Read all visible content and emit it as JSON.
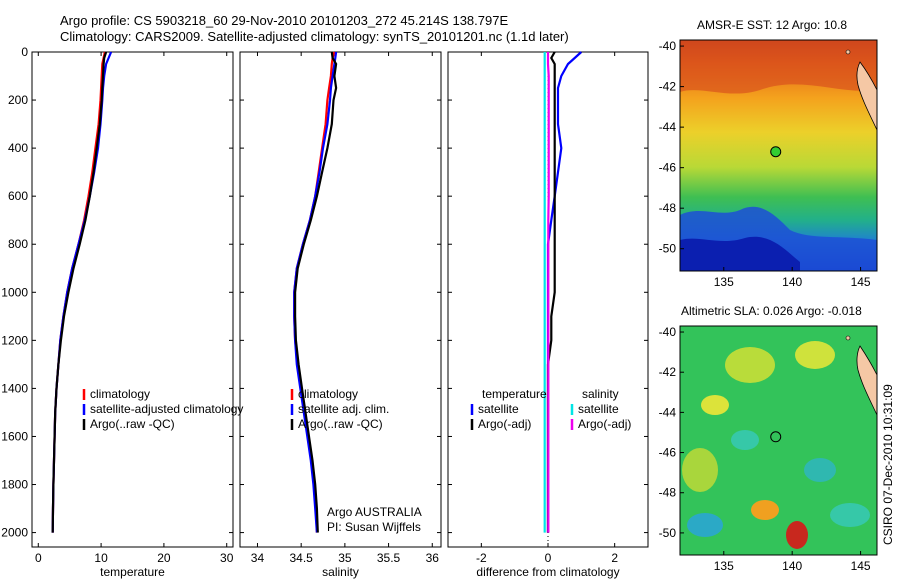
{
  "header": {
    "line1": "Argo profile: CS 5903218_60 29-Nov-2010 20101203_272 45.214S 138.797E",
    "line2": "Climatology: CARS2009. Satellite-adjusted climatology: synTS_20101201.nc (1.1d later)"
  },
  "stamp": "CSIRO 07-Dec-2010 10:31:09",
  "colors": {
    "climatology": "#ff0000",
    "satellite": "#0000ff",
    "argo": "#000000",
    "sal_satellite": "#00e5e5",
    "sal_argo": "#ee00ee",
    "marker": "#32cd32"
  },
  "chart_data": [
    {
      "id": "temperature",
      "type": "line",
      "xlabel": "temperature",
      "xlim": [
        -1,
        31
      ],
      "xticks": [
        0,
        10,
        20,
        30
      ],
      "ylim": [
        0,
        2060
      ],
      "yticks": [
        0,
        200,
        400,
        600,
        800,
        1000,
        1200,
        1400,
        1600,
        1800,
        2000
      ],
      "depth": [
        0,
        25,
        50,
        100,
        150,
        200,
        300,
        400,
        500,
        600,
        700,
        800,
        900,
        1000,
        1100,
        1200,
        1300,
        1400,
        1500,
        1600,
        1700,
        1800,
        1900,
        2000
      ],
      "series": [
        {
          "name": "climatology",
          "color_key": "climatology",
          "values": [
            10.6,
            10.4,
            10.2,
            10.1,
            10.0,
            9.9,
            9.6,
            9.1,
            8.6,
            8.0,
            7.3,
            6.4,
            5.4,
            4.6,
            4.0,
            3.5,
            3.2,
            2.9,
            2.7,
            2.6,
            2.5,
            2.4,
            2.35,
            2.3
          ]
        },
        {
          "name": "satellite-adjusted climatology",
          "color_key": "satellite",
          "values": [
            11.6,
            11.2,
            10.8,
            10.5,
            10.3,
            10.2,
            9.9,
            9.5,
            8.9,
            8.2,
            7.4,
            6.4,
            5.4,
            4.6,
            4.0,
            3.5,
            3.2,
            2.9,
            2.7,
            2.6,
            2.5,
            2.4,
            2.35,
            2.3
          ]
        },
        {
          "name": "Argo(..raw -QC)",
          "color_key": "argo",
          "values": [
            10.8,
            10.5,
            10.4,
            10.3,
            10.2,
            10.1,
            9.8,
            9.3,
            8.8,
            8.2,
            7.5,
            6.6,
            5.6,
            4.8,
            4.1,
            3.6,
            3.2,
            2.9,
            2.7,
            2.6,
            2.5,
            2.4,
            2.35,
            2.3
          ]
        }
      ],
      "legend": {
        "items": [
          "climatology",
          "satellite-adjusted climatology",
          "Argo(..raw -QC)"
        ]
      }
    },
    {
      "id": "salinity",
      "type": "line",
      "xlabel": "salinity",
      "xlim": [
        33.8,
        36.1
      ],
      "xticks": [
        34,
        34.5,
        35,
        35.5,
        36
      ],
      "ylim": [
        0,
        2060
      ],
      "yticks": [
        0,
        200,
        400,
        600,
        800,
        1000,
        1200,
        1400,
        1600,
        1800,
        2000
      ],
      "depth": [
        0,
        25,
        50,
        100,
        150,
        200,
        300,
        400,
        500,
        600,
        700,
        800,
        900,
        1000,
        1100,
        1200,
        1300,
        1400,
        1500,
        1600,
        1700,
        1800,
        1900,
        2000
      ],
      "series": [
        {
          "name": "climatology",
          "color_key": "climatology",
          "values": [
            34.88,
            34.86,
            34.85,
            34.84,
            34.82,
            34.8,
            34.78,
            34.74,
            34.7,
            34.66,
            34.6,
            34.52,
            34.45,
            34.42,
            34.42,
            34.43,
            34.46,
            34.5,
            34.54,
            34.58,
            34.62,
            34.65,
            34.67,
            34.68
          ]
        },
        {
          "name": "satellite adj. clim.",
          "color_key": "satellite",
          "values": [
            34.9,
            34.89,
            34.88,
            34.86,
            34.84,
            34.83,
            34.8,
            34.75,
            34.71,
            34.66,
            34.6,
            34.52,
            34.45,
            34.42,
            34.42,
            34.43,
            34.45,
            34.49,
            34.53,
            34.57,
            34.61,
            34.64,
            34.66,
            34.68
          ]
        },
        {
          "name": "Argo(..raw -QC)",
          "color_key": "argo",
          "values": [
            34.85,
            34.86,
            34.9,
            34.88,
            34.9,
            34.87,
            34.85,
            34.8,
            34.74,
            34.68,
            34.61,
            34.53,
            34.46,
            34.43,
            34.43,
            34.44,
            34.47,
            34.51,
            34.55,
            34.59,
            34.63,
            34.66,
            34.68,
            34.69
          ]
        }
      ],
      "legend": {
        "items": [
          "climatology",
          "satellite adj. clim.",
          "Argo(..raw -QC)"
        ]
      },
      "annotation": [
        "Argo AUSTRALIA",
        "PI: Susan Wijffels"
      ]
    },
    {
      "id": "difference",
      "type": "line",
      "xlabel": "difference from climatology",
      "xlim": [
        -3,
        3
      ],
      "xticks": [
        -2,
        0,
        2
      ],
      "ylim": [
        0,
        2060
      ],
      "yticks": [
        0,
        200,
        400,
        600,
        800,
        1000,
        1200,
        1400,
        1600,
        1800,
        2000
      ],
      "depth": [
        0,
        25,
        50,
        100,
        150,
        200,
        300,
        400,
        500,
        600,
        700,
        800,
        900,
        1000,
        1100,
        1200,
        1300,
        1400,
        1500,
        1600,
        1700,
        1800,
        1900,
        2000
      ],
      "series": [
        {
          "name": "temperature satellite",
          "color_key": "satellite",
          "values": [
            1.0,
            0.8,
            0.6,
            0.4,
            0.3,
            0.3,
            0.3,
            0.4,
            0.3,
            0.2,
            0.1,
            0.0,
            0.0,
            0.0,
            0.0,
            0.0,
            0.0,
            0.0,
            0.0,
            0.0,
            0.0,
            0.0,
            0.0,
            0.0
          ]
        },
        {
          "name": "temperature Argo(-adj)",
          "color_key": "argo",
          "values": [
            0.2,
            0.1,
            0.2,
            0.2,
            0.2,
            0.2,
            0.2,
            0.2,
            0.2,
            0.2,
            0.2,
            0.2,
            0.2,
            0.2,
            0.1,
            0.1,
            0.0,
            0.0,
            0.0,
            0.0,
            0.0,
            0.0,
            0.0,
            0.0
          ]
        },
        {
          "name": "salinity satellite",
          "color_key": "sal_satellite",
          "values": [
            -0.1,
            -0.1,
            -0.1,
            -0.1,
            -0.1,
            -0.1,
            -0.1,
            -0.1,
            -0.1,
            -0.1,
            -0.1,
            -0.1,
            -0.1,
            -0.1,
            -0.1,
            -0.1,
            -0.1,
            -0.1,
            -0.1,
            -0.1,
            -0.1,
            -0.1,
            -0.1,
            -0.1
          ]
        },
        {
          "name": "salinity Argo(-adj)",
          "color_key": "sal_argo",
          "values": [
            0.0,
            0.0,
            0.0,
            0.02,
            0.02,
            0.02,
            0.02,
            0.02,
            0.02,
            0.02,
            0.01,
            0.01,
            0.01,
            0.01,
            0.01,
            0.01,
            0.01,
            0.01,
            0.01,
            0.01,
            0.01,
            0.01,
            0.01,
            0.01
          ]
        }
      ],
      "legend": {
        "groups": [
          {
            "heading": "temperature",
            "items": [
              "satellite",
              "Argo(-adj)"
            ]
          },
          {
            "heading": "salinity",
            "items": [
              "satellite",
              "Argo(-adj)"
            ]
          }
        ]
      }
    },
    {
      "id": "sst_map",
      "type": "heatmap",
      "title": "AMSR-E SST: 12  Argo: 10.8",
      "xlim": [
        131.8,
        146.2
      ],
      "ylim": [
        -51.1,
        -39.7
      ],
      "xticks": [
        135,
        140,
        145
      ],
      "yticks": [
        -40,
        -42,
        -44,
        -46,
        -48,
        -50
      ],
      "marker": {
        "lon": 138.797,
        "lat": -45.214
      }
    },
    {
      "id": "sla_map",
      "type": "heatmap",
      "title": "Altimetric SLA: 0.026  Argo: -0.018",
      "xlim": [
        131.8,
        146.2
      ],
      "ylim": [
        -51.1,
        -39.7
      ],
      "xticks": [
        135,
        140,
        145
      ],
      "yticks": [
        -40,
        -42,
        -44,
        -46,
        -48,
        -50
      ],
      "marker": {
        "lon": 138.797,
        "lat": -45.214
      }
    }
  ]
}
